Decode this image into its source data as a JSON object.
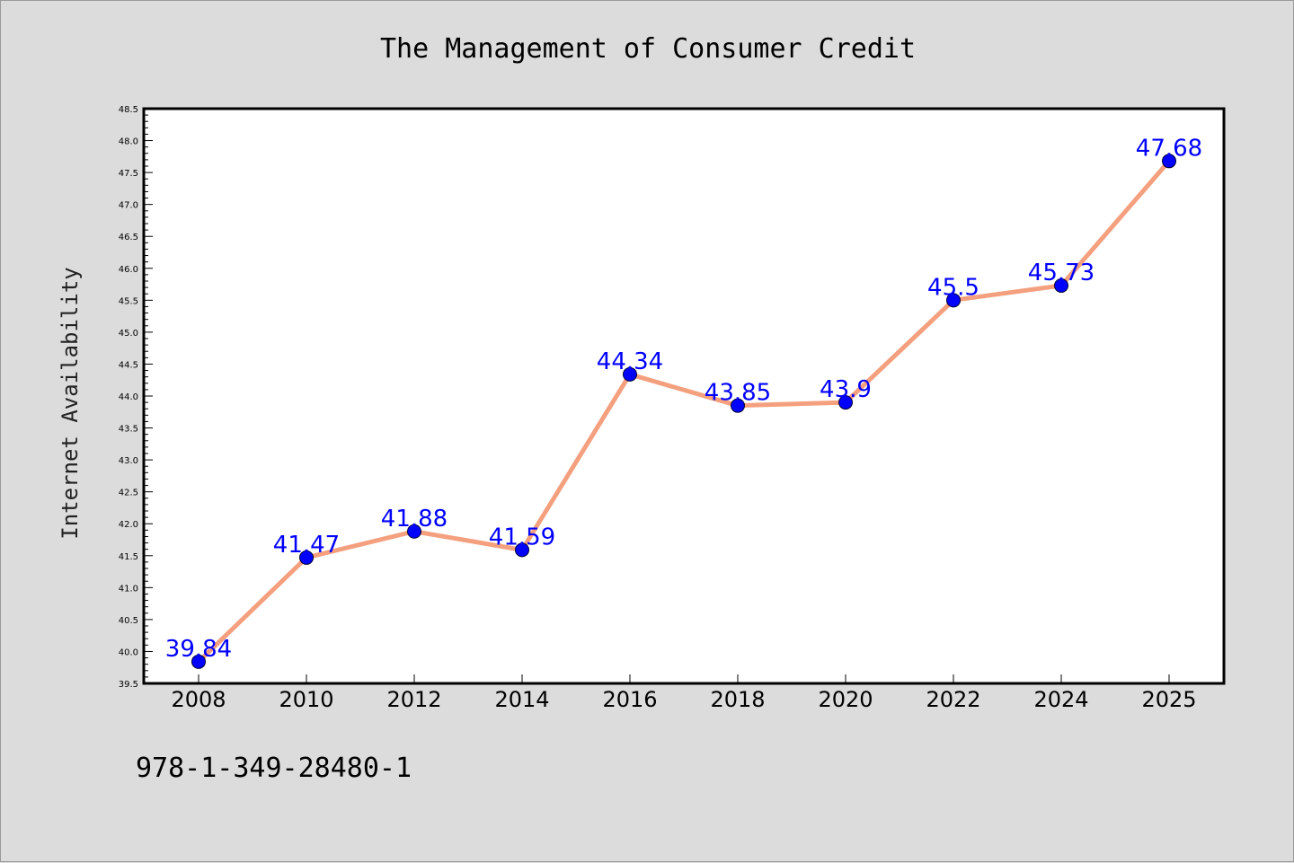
{
  "chart_data": {
    "type": "line",
    "title": "The Management of Consumer Credit",
    "xlabel": "",
    "ylabel": "Internet Availability",
    "categories": [
      "2008",
      "2010",
      "2012",
      "2014",
      "2016",
      "2018",
      "2020",
      "2022",
      "2024",
      "2025"
    ],
    "series": [
      {
        "values": [
          39.84,
          41.47,
          41.88,
          41.59,
          44.34,
          43.85,
          43.9,
          45.5,
          45.73,
          47.68
        ],
        "labels": [
          "39.84",
          "41.47",
          "41.88",
          "41.59",
          "44.34",
          "43.85",
          "43.9",
          "45.5",
          "45.73",
          "47.68"
        ],
        "line_color": "#f4a07e",
        "marker_color": "#0000ff"
      }
    ],
    "ylim": [
      39.5,
      48.5
    ],
    "yticks": [
      "39.5",
      "40.0",
      "40.5",
      "41.0",
      "41.5",
      "42.0",
      "42.5",
      "43.0",
      "43.5",
      "44.0",
      "44.5",
      "45.0",
      "45.5",
      "46.0",
      "46.5",
      "47.0",
      "47.5",
      "48.0",
      "48.5"
    ],
    "grid": false,
    "data_label_color": "#0000ff"
  },
  "footer": {
    "isbn": "978-1-349-28480-1"
  }
}
